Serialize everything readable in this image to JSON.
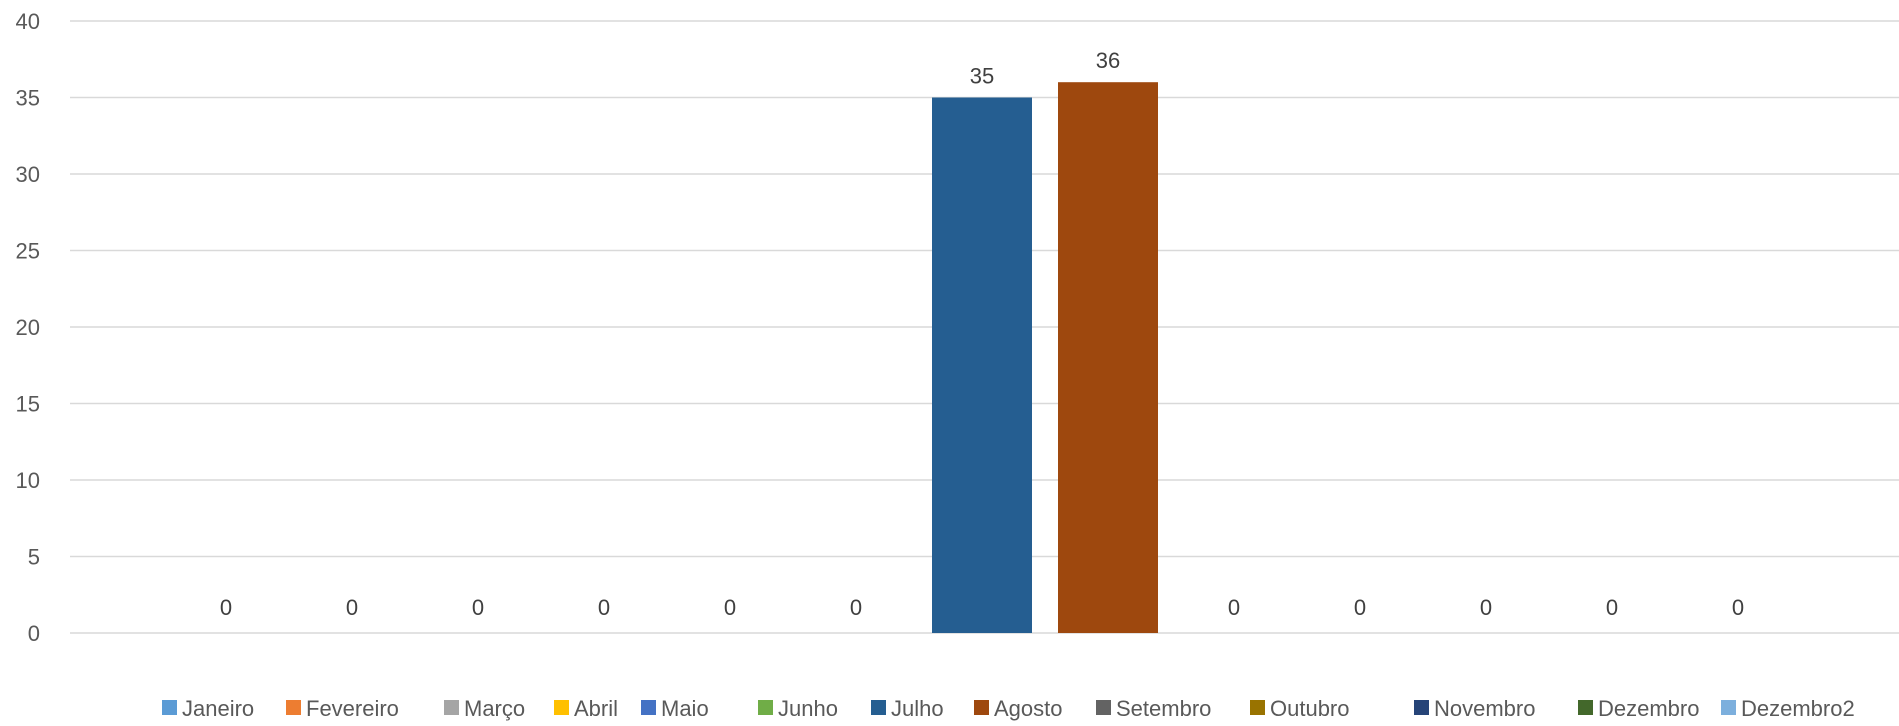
{
  "chart_data": {
    "type": "bar",
    "ylim": [
      0,
      40
    ],
    "yticks": [
      0,
      5,
      10,
      15,
      20,
      25,
      30,
      35,
      40
    ],
    "grid": true,
    "legend_position": "bottom",
    "data_labels": true,
    "series": [
      {
        "name": "Janeiro",
        "value": 0,
        "color": "#5B9BD5"
      },
      {
        "name": "Fevereiro",
        "value": 0,
        "color": "#ED7D31"
      },
      {
        "name": "Março",
        "value": 0,
        "color": "#A5A5A5"
      },
      {
        "name": "Abril",
        "value": 0,
        "color": "#FFC000"
      },
      {
        "name": "Maio",
        "value": 0,
        "color": "#4472C4"
      },
      {
        "name": "Junho",
        "value": 0,
        "color": "#70AD47"
      },
      {
        "name": "Julho",
        "value": 35,
        "color": "#255E91"
      },
      {
        "name": "Agosto",
        "value": 36,
        "color": "#9E480E"
      },
      {
        "name": "Setembro",
        "value": 0,
        "color": "#636363"
      },
      {
        "name": "Outubro",
        "value": 0,
        "color": "#997300"
      },
      {
        "name": "Novembro",
        "value": 0,
        "color": "#264478"
      },
      {
        "name": "Dezembro",
        "value": 0,
        "color": "#43682B"
      },
      {
        "name": "Dezembro2",
        "value": 0,
        "color": "#7CAFDD"
      }
    ]
  }
}
